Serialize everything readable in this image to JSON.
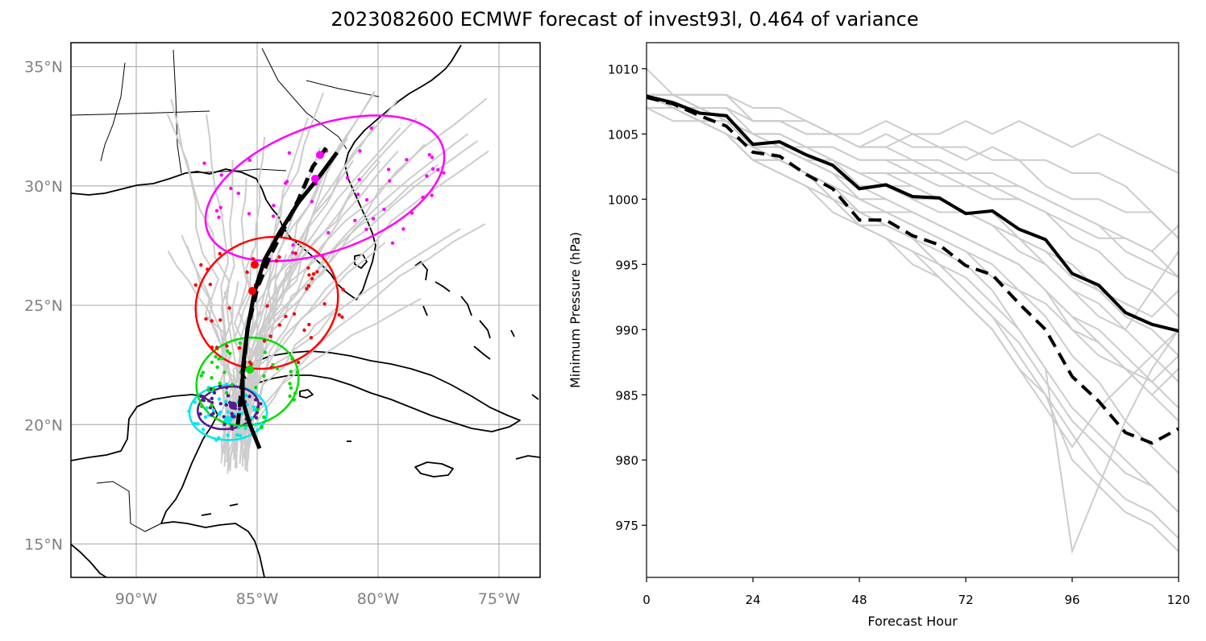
{
  "title": "2023082600 ECMWF forecast of invest93l, 0.464 of variance",
  "colors": {
    "ensemble": "#cccccc",
    "mean": "#000000",
    "ellipses": [
      "#00e5ee",
      "#551a8b",
      "#00dd00",
      "#ff0000",
      "#ff00ff"
    ]
  },
  "map": {
    "type": "map",
    "lon_range": [
      -92.7,
      -73.3
    ],
    "lat_range": [
      13.6,
      36.0
    ],
    "lat_ticks": [
      {
        "value": 35,
        "label": "35°N"
      },
      {
        "value": 30,
        "label": "30°N"
      },
      {
        "value": 25,
        "label": "25°N"
      },
      {
        "value": 20,
        "label": "20°N"
      },
      {
        "value": 15,
        "label": "15°N"
      }
    ],
    "lon_ticks": [
      {
        "value": -90,
        "label": "90°W"
      },
      {
        "value": -85,
        "label": "85°W"
      },
      {
        "value": -80,
        "label": "80°W"
      },
      {
        "value": -75,
        "label": "75°W"
      }
    ],
    "grid": true
  },
  "chart_data": {
    "type": "line",
    "xlabel": "Forecast Hour",
    "ylabel": "Minimum Pressure (hPa)",
    "xlim": [
      0,
      120
    ],
    "ylim": [
      971,
      1012
    ],
    "xticks": [
      0,
      24,
      48,
      72,
      96,
      120
    ],
    "yticks": [
      975,
      980,
      985,
      990,
      995,
      1000,
      1005,
      1010
    ],
    "x": [
      0,
      6,
      12,
      18,
      24,
      30,
      36,
      42,
      48,
      54,
      60,
      66,
      72,
      78,
      84,
      90,
      96,
      102,
      108,
      114,
      120
    ],
    "series": [
      {
        "style": "solid",
        "values": [
          1007.9,
          1007.4,
          1006.6,
          1006.4,
          1004.2,
          1004.4,
          1003.4,
          1002.6,
          1000.8,
          1001.1,
          1000.2,
          1000.1,
          998.9,
          999.1,
          997.7,
          996.9,
          994.3,
          993.4,
          991.3,
          990.4,
          989.9
        ]
      },
      {
        "style": "dashed",
        "values": [
          1007.8,
          1007.3,
          1006.4,
          1005.6,
          1003.6,
          1003.3,
          1001.9,
          1000.8,
          998.4,
          998.4,
          997.2,
          996.5,
          994.9,
          994.2,
          992.0,
          990.0,
          986.4,
          984.5,
          982.1,
          981.3,
          982.4
        ]
      },
      {
        "style": "ensemble",
        "values": [
          1010.0,
          1008.0,
          1008.0,
          1008.0,
          1006.0,
          1006.0,
          1006.0,
          1005.0,
          1005.0,
          1006.0,
          1005.0,
          1005.0,
          1006.0,
          1005.0,
          1006.0,
          1005.0,
          1004.0,
          1005.0,
          1004.0,
          1003.0,
          1002.0
        ]
      },
      {
        "style": "ensemble",
        "values": [
          1008.0,
          1008.0,
          1007.0,
          1007.0,
          1006.0,
          1006.0,
          1005.0,
          1005.0,
          1004.0,
          1005.0,
          1004.0,
          1004.0,
          1003.0,
          1004.0,
          1003.0,
          1003.0,
          1002.0,
          1002.0,
          1001.0,
          999.0,
          997.0
        ]
      },
      {
        "style": "ensemble",
        "values": [
          1008.0,
          1008.0,
          1008.0,
          1008.0,
          1007.0,
          1007.0,
          1006.0,
          1005.0,
          1004.0,
          1004.0,
          1005.0,
          1004.0,
          1004.0,
          1003.0,
          1003.0,
          1001.0,
          1000.0,
          1000.0,
          999.0,
          999.0,
          997.0
        ]
      },
      {
        "style": "ensemble",
        "values": [
          1007.0,
          1007.0,
          1007.0,
          1006.0,
          1005.0,
          1005.0,
          1004.0,
          1004.0,
          1003.0,
          1003.0,
          1003.0,
          1002.0,
          1002.0,
          1001.0,
          1001.0,
          1000.0,
          999.0,
          998.0,
          997.0,
          996.0,
          994.0
        ]
      },
      {
        "style": "ensemble",
        "values": [
          1008.0,
          1007.0,
          1007.0,
          1007.0,
          1005.0,
          1005.0,
          1004.0,
          1003.0,
          1002.0,
          1002.0,
          1002.0,
          1001.0,
          1001.0,
          1000.0,
          1000.0,
          999.0,
          997.0,
          996.0,
          994.0,
          993.0,
          991.0
        ]
      },
      {
        "style": "ensemble",
        "values": [
          1008.0,
          1007.0,
          1006.0,
          1006.0,
          1004.0,
          1004.0,
          1003.0,
          1003.0,
          1001.0,
          1001.0,
          1000.0,
          1000.0,
          999.0,
          999.0,
          997.0,
          996.0,
          994.0,
          993.0,
          991.0,
          990.0,
          988.0
        ]
      },
      {
        "style": "ensemble",
        "values": [
          1007.0,
          1007.0,
          1006.0,
          1006.0,
          1004.0,
          1003.0,
          1002.0,
          1001.0,
          1000.0,
          999.0,
          999.0,
          998.0,
          997.0,
          996.0,
          995.0,
          993.0,
          991.0,
          990.0,
          988.0,
          986.0,
          984.0
        ]
      },
      {
        "style": "ensemble",
        "values": [
          1008.0,
          1007.0,
          1006.0,
          1005.0,
          1003.0,
          1003.0,
          1002.0,
          1001.0,
          999.0,
          999.0,
          998.0,
          997.0,
          996.0,
          995.0,
          993.0,
          992.0,
          990.0,
          988.0,
          987.0,
          986.0,
          988.0
        ]
      },
      {
        "style": "ensemble",
        "values": [
          1007.0,
          1007.0,
          1006.0,
          1005.0,
          1003.0,
          1002.0,
          1001.0,
          1000.0,
          998.0,
          997.0,
          996.0,
          995.0,
          993.0,
          991.0,
          989.0,
          986.0,
          983.0,
          981.0,
          979.0,
          978.0,
          976.0
        ]
      },
      {
        "style": "ensemble",
        "values": [
          1008.0,
          1007.0,
          1007.0,
          1006.0,
          1005.0,
          1004.0,
          1003.0,
          1002.0,
          1000.0,
          1000.0,
          999.0,
          998.0,
          997.0,
          996.0,
          995.0,
          993.0,
          990.0,
          989.0,
          987.0,
          985.0,
          987.0
        ]
      },
      {
        "style": "ensemble",
        "values": [
          1007.0,
          1007.0,
          1006.0,
          1005.0,
          1004.0,
          1003.0,
          1002.0,
          1001.0,
          999.0,
          998.0,
          997.0,
          996.0,
          995.0,
          993.0,
          990.0,
          987.0,
          984.0,
          982.0,
          980.0,
          978.0,
          976.0
        ]
      },
      {
        "style": "ensemble",
        "values": [
          1008.0,
          1008.0,
          1007.0,
          1006.0,
          1005.0,
          1005.0,
          1004.0,
          1003.0,
          1002.0,
          1002.0,
          1001.0,
          1000.0,
          999.0,
          998.0,
          997.0,
          995.0,
          993.0,
          992.0,
          990.0,
          988.0,
          986.0
        ]
      },
      {
        "style": "ensemble",
        "values": [
          1007.0,
          1006.0,
          1006.0,
          1005.0,
          1003.0,
          1002.0,
          1001.0,
          999.0,
          998.0,
          997.0,
          995.0,
          994.0,
          992.0,
          990.0,
          987.0,
          984.0,
          981.0,
          984.0,
          986.0,
          988.0,
          990.0
        ]
      },
      {
        "style": "ensemble",
        "values": [
          1008.0,
          1007.0,
          1007.0,
          1006.0,
          1005.0,
          1004.0,
          1003.0,
          1002.0,
          1001.0,
          1001.0,
          1000.0,
          999.0,
          999.0,
          998.0,
          997.0,
          996.0,
          995.0,
          993.0,
          992.0,
          991.0,
          993.0
        ]
      },
      {
        "style": "ensemble",
        "values": [
          1007.0,
          1007.0,
          1006.0,
          1005.0,
          1003.0,
          1003.0,
          1002.0,
          1000.0,
          999.0,
          998.0,
          997.0,
          995.0,
          993.0,
          991.0,
          988.0,
          985.0,
          980.0,
          978.0,
          976.0,
          975.0,
          973.0
        ]
      },
      {
        "style": "ensemble",
        "values": [
          1008.0,
          1007.0,
          1006.0,
          1006.0,
          1004.0,
          1004.0,
          1003.0,
          1002.0,
          1000.0,
          999.0,
          998.0,
          997.0,
          996.0,
          994.0,
          993.0,
          991.0,
          988.0,
          986.0,
          983.0,
          981.0,
          979.0
        ]
      },
      {
        "style": "ensemble",
        "values": [
          1007.0,
          1007.0,
          1006.0,
          1005.0,
          1004.0,
          1003.0,
          1002.0,
          1000.0,
          998.0,
          998.0,
          997.0,
          995.0,
          994.0,
          992.0,
          990.0,
          987.0,
          973.0,
          978.0,
          983.0,
          987.0,
          990.0
        ]
      },
      {
        "style": "ensemble",
        "values": [
          1008.0,
          1008.0,
          1007.0,
          1007.0,
          1006.0,
          1006.0,
          1005.0,
          1005.0,
          1004.0,
          1004.0,
          1003.0,
          1003.0,
          1002.0,
          1002.0,
          1001.0,
          1000.0,
          999.0,
          998.0,
          996.0,
          995.0,
          994.0
        ]
      },
      {
        "style": "ensemble",
        "values": [
          1007.0,
          1007.0,
          1006.0,
          1006.0,
          1004.0,
          1004.0,
          1003.0,
          1002.0,
          1001.0,
          1000.0,
          999.0,
          998.0,
          997.0,
          996.0,
          995.0,
          993.0,
          991.0,
          989.0,
          987.0,
          985.0,
          983.0
        ]
      },
      {
        "style": "ensemble",
        "values": [
          1008.0,
          1007.0,
          1007.0,
          1006.0,
          1005.0,
          1004.0,
          1004.0,
          1003.0,
          1002.0,
          1001.0,
          1001.0,
          1000.0,
          999.0,
          998.0,
          996.0,
          995.0,
          993.0,
          991.0,
          990.0,
          993.0,
          996.0
        ]
      },
      {
        "style": "ensemble",
        "values": [
          1007.0,
          1007.0,
          1006.0,
          1005.0,
          1003.0,
          1002.0,
          1001.0,
          1000.0,
          998.0,
          997.0,
          996.0,
          994.0,
          992.0,
          990.0,
          987.0,
          985.0,
          982.0,
          979.0,
          977.0,
          976.0,
          974.0
        ]
      },
      {
        "style": "ensemble",
        "values": [
          1008.0,
          1008.0,
          1007.0,
          1006.0,
          1005.0,
          1005.0,
          1004.0,
          1004.0,
          1003.0,
          1003.0,
          1002.0,
          1002.0,
          1001.0,
          1001.0,
          1000.0,
          999.0,
          998.0,
          997.0,
          997.0,
          996.0,
          998.0
        ]
      }
    ]
  }
}
